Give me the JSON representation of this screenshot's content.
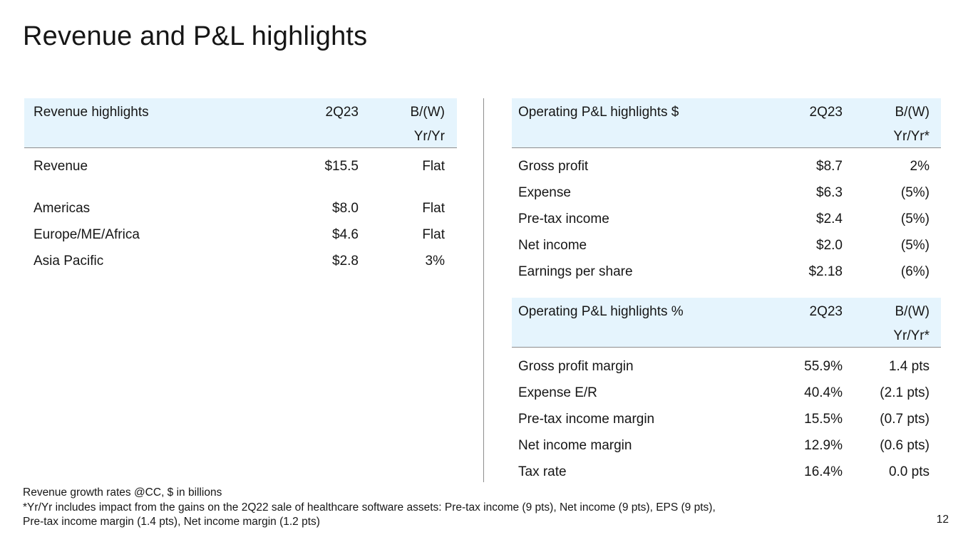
{
  "title": "Revenue and P&L highlights",
  "revenue_table": {
    "header": {
      "label": "Revenue highlights",
      "period": "2Q23",
      "change_line1": "B/(W)",
      "change_line2": "Yr/Yr"
    },
    "rows": [
      {
        "label": "Revenue",
        "value": "$15.5",
        "change": "Flat"
      },
      {
        "label": "Americas",
        "value": "$8.0",
        "change": "Flat"
      },
      {
        "label": "Europe/ME/Africa",
        "value": "$4.6",
        "change": "Flat"
      },
      {
        "label": "Asia Pacific",
        "value": "$2.8",
        "change": "3%"
      }
    ]
  },
  "pl_dollar_table": {
    "header": {
      "label": "Operating P&L highlights $",
      "period": "2Q23",
      "change_line1": "B/(W)",
      "change_line2": "Yr/Yr*"
    },
    "rows": [
      {
        "label": "Gross profit",
        "value": "$8.7",
        "change": "2%"
      },
      {
        "label": "Expense",
        "value": "$6.3",
        "change": "(5%)"
      },
      {
        "label": "Pre-tax income",
        "value": "$2.4",
        "change": "(5%)"
      },
      {
        "label": "Net income",
        "value": "$2.0",
        "change": "(5%)"
      },
      {
        "label": "Earnings per share",
        "value": "$2.18",
        "change": "(6%)"
      }
    ]
  },
  "pl_percent_table": {
    "header": {
      "label": "Operating P&L highlights %",
      "period": "2Q23",
      "change_line1": "B/(W)",
      "change_line2": "Yr/Yr*"
    },
    "rows": [
      {
        "label": "Gross profit margin",
        "value": "55.9%",
        "change": "1.4 pts"
      },
      {
        "label": "Expense E/R",
        "value": "40.4%",
        "change": "(2.1 pts)"
      },
      {
        "label": "Pre-tax income margin",
        "value": "15.5%",
        "change": "(0.7 pts)"
      },
      {
        "label": "Net income margin",
        "value": "12.9%",
        "change": "(0.6 pts)"
      },
      {
        "label": "Tax rate",
        "value": "16.4%",
        "change": "0.0 pts"
      }
    ]
  },
  "footnotes": {
    "line1": "Revenue growth rates @CC, $ in billions",
    "line2": "*Yr/Yr includes impact from the gains on the 2Q22 sale of healthcare software assets: Pre-tax income (9 pts), Net income (9 pts), EPS (9 pts),",
    "line3": "Pre-tax income margin (1.4 pts), Net income margin (1.2 pts)"
  },
  "page_number": "12"
}
